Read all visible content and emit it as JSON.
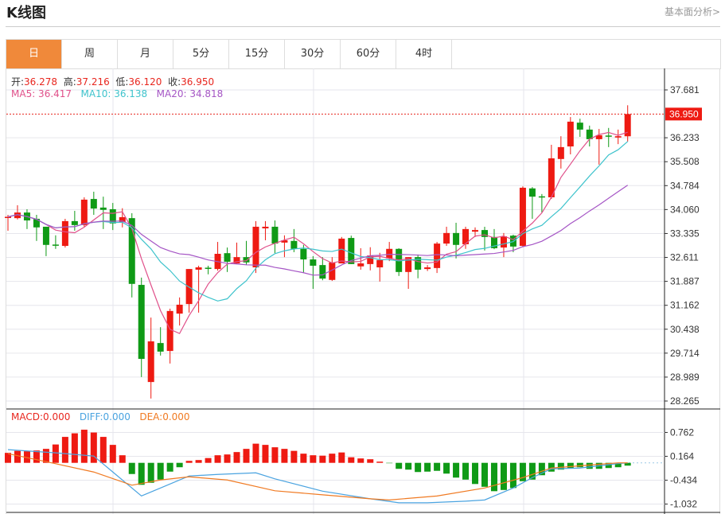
{
  "header": {
    "title": "K线图",
    "fundamental_link": "基本面分析>"
  },
  "tabs": [
    {
      "label": "日",
      "active": true
    },
    {
      "label": "周"
    },
    {
      "label": "月"
    },
    {
      "label": "5分"
    },
    {
      "label": "15分"
    },
    {
      "label": "30分"
    },
    {
      "label": "60分"
    },
    {
      "label": "4时"
    }
  ],
  "ohlc_legend": {
    "open_label": "开:",
    "open": "36.278",
    "high_label": "高:",
    "high": "37.216",
    "low_label": "低:",
    "low": "36.120",
    "close_label": "收:",
    "close": "36.950"
  },
  "ma_legend": {
    "ma5": "MA5: 36.417",
    "ma10": "MA10: 36.138",
    "ma20": "MA20: 34.818"
  },
  "macd_legend": {
    "macd": "MACD:0.000",
    "diff": "DIFF:0.000",
    "dea": "DEA:0.000"
  },
  "colors": {
    "up": "#ee1a12",
    "down": "#0f9a16",
    "ma5": "#e0508a",
    "ma10": "#3ec3cc",
    "ma20": "#a555c5",
    "diff": "#4aa3e0",
    "dea": "#f07a22",
    "accent": "#f0893a"
  },
  "chart_data": [
    {
      "type": "candlestick",
      "price_ticks": [
        "37.681",
        "36.233",
        "35.508",
        "34.784",
        "34.060",
        "33.335",
        "32.611",
        "31.887",
        "31.162",
        "30.438",
        "29.714",
        "28.989",
        "28.265"
      ],
      "ylim": [
        28.265,
        37.681
      ],
      "last_price": "36.950",
      "ohlc": [
        [
          33.82,
          33.9,
          33.42,
          33.84
        ],
        [
          33.8,
          34.19,
          33.76,
          33.97
        ],
        [
          33.97,
          34.07,
          33.47,
          33.73
        ],
        [
          33.78,
          33.9,
          33.11,
          33.52
        ],
        [
          33.54,
          33.54,
          32.65,
          32.99
        ],
        [
          33.0,
          33.28,
          32.87,
          32.98
        ],
        [
          32.96,
          33.78,
          32.91,
          33.71
        ],
        [
          33.71,
          34.02,
          33.42,
          33.59
        ],
        [
          33.59,
          34.43,
          33.54,
          34.36
        ],
        [
          34.38,
          34.6,
          33.9,
          34.09
        ],
        [
          34.12,
          34.45,
          33.47,
          34.05
        ],
        [
          34.07,
          34.26,
          33.44,
          33.64
        ],
        [
          33.68,
          34.1,
          33.52,
          33.83
        ],
        [
          33.8,
          33.95,
          31.4,
          31.81
        ],
        [
          31.78,
          32.0,
          28.99,
          29.54
        ],
        [
          28.84,
          30.79,
          28.34,
          30.07
        ],
        [
          30.02,
          30.5,
          29.64,
          29.76
        ],
        [
          29.78,
          31.06,
          29.4,
          30.99
        ],
        [
          30.91,
          31.4,
          30.55,
          31.18
        ],
        [
          31.2,
          32.26,
          30.94,
          32.26
        ],
        [
          32.24,
          32.36,
          30.94,
          32.31
        ],
        [
          32.3,
          32.36,
          32.1,
          32.28
        ],
        [
          32.26,
          33.08,
          32.21,
          32.72
        ],
        [
          32.74,
          32.91,
          32.17,
          32.48
        ],
        [
          32.43,
          33.06,
          32.41,
          32.62
        ],
        [
          32.62,
          33.11,
          32.38,
          32.46
        ],
        [
          32.31,
          33.71,
          32.14,
          33.54
        ],
        [
          33.49,
          33.71,
          33.13,
          33.54
        ],
        [
          33.54,
          33.73,
          32.74,
          33.03
        ],
        [
          33.06,
          33.28,
          32.62,
          33.13
        ],
        [
          33.11,
          33.47,
          32.77,
          32.87
        ],
        [
          32.87,
          32.99,
          32.15,
          32.55
        ],
        [
          32.55,
          32.65,
          31.66,
          32.36
        ],
        [
          32.38,
          32.62,
          31.92,
          31.97
        ],
        [
          31.93,
          32.62,
          31.9,
          32.46
        ],
        [
          32.43,
          33.23,
          32.43,
          33.18
        ],
        [
          33.2,
          33.27,
          32.41,
          32.41
        ],
        [
          32.34,
          32.89,
          32.24,
          32.43
        ],
        [
          32.41,
          32.92,
          32.22,
          32.67
        ],
        [
          32.31,
          32.75,
          31.88,
          32.53
        ],
        [
          32.58,
          33.08,
          32.5,
          32.87
        ],
        [
          32.87,
          32.89,
          32.05,
          32.17
        ],
        [
          32.17,
          32.62,
          31.66,
          32.62
        ],
        [
          32.62,
          32.7,
          31.98,
          32.24
        ],
        [
          32.26,
          32.38,
          32.2,
          32.31
        ],
        [
          32.29,
          33.08,
          32.14,
          33.03
        ],
        [
          33.03,
          33.54,
          32.96,
          33.35
        ],
        [
          33.35,
          33.66,
          32.58,
          32.99
        ],
        [
          33.01,
          33.54,
          32.87,
          33.47
        ],
        [
          33.39,
          33.52,
          33.23,
          33.44
        ],
        [
          33.44,
          33.54,
          32.82,
          33.23
        ],
        [
          33.23,
          33.47,
          32.86,
          32.89
        ],
        [
          32.91,
          33.35,
          32.62,
          33.25
        ],
        [
          33.27,
          33.3,
          32.77,
          32.94
        ],
        [
          32.96,
          34.76,
          32.92,
          34.72
        ],
        [
          34.7,
          34.74,
          33.78,
          34.45
        ],
        [
          34.46,
          34.53,
          33.97,
          34.44
        ],
        [
          34.43,
          36.02,
          34.38,
          35.61
        ],
        [
          35.59,
          36.28,
          35.3,
          35.95
        ],
        [
          35.97,
          36.86,
          35.73,
          36.72
        ],
        [
          36.69,
          36.81,
          36.26,
          36.48
        ],
        [
          36.48,
          36.6,
          35.97,
          36.19
        ],
        [
          36.19,
          36.5,
          35.42,
          36.31
        ],
        [
          36.3,
          36.53,
          35.95,
          36.27
        ],
        [
          36.24,
          36.48,
          36.04,
          36.28
        ],
        [
          36.278,
          37.216,
          36.12,
          36.95
        ]
      ]
    },
    {
      "type": "macd",
      "ticks": [
        "0.762",
        "0.164",
        "-0.434",
        "-1.032"
      ],
      "histogram": [
        0.25,
        0.3,
        0.29,
        0.31,
        0.35,
        0.46,
        0.65,
        0.74,
        0.83,
        0.76,
        0.65,
        0.45,
        0.19,
        -0.28,
        -0.55,
        -0.5,
        -0.42,
        -0.22,
        -0.11,
        0.05,
        0.07,
        0.12,
        0.19,
        0.21,
        0.27,
        0.35,
        0.48,
        0.45,
        0.39,
        0.35,
        0.3,
        0.23,
        0.19,
        0.18,
        0.23,
        0.26,
        0.14,
        0.11,
        0.09,
        0.03,
        -0.01,
        -0.15,
        -0.17,
        -0.23,
        -0.22,
        -0.2,
        -0.27,
        -0.37,
        -0.42,
        -0.53,
        -0.6,
        -0.71,
        -0.68,
        -0.63,
        -0.46,
        -0.42,
        -0.31,
        -0.22,
        -0.17,
        -0.13,
        -0.11,
        -0.15,
        -0.15,
        -0.13,
        -0.11,
        -0.07
      ],
      "diff": [
        [
          0,
          0.33
        ],
        [
          5,
          0.25
        ],
        [
          9,
          0.17
        ],
        [
          11,
          -0.23
        ],
        [
          14,
          -0.83
        ],
        [
          16,
          -0.63
        ],
        [
          19,
          -0.33
        ],
        [
          22,
          -0.29
        ],
        [
          26,
          -0.25
        ],
        [
          28,
          -0.4
        ],
        [
          33,
          -0.71
        ],
        [
          38,
          -0.9
        ],
        [
          41,
          -1.0
        ],
        [
          44,
          -1.0
        ],
        [
          48,
          -0.96
        ],
        [
          50,
          -0.93
        ],
        [
          53,
          -0.63
        ],
        [
          55,
          -0.37
        ],
        [
          57,
          -0.15
        ],
        [
          60,
          -0.13
        ],
        [
          64,
          -0.02
        ],
        [
          65,
          0
        ]
      ],
      "dea": [
        [
          0,
          0.23
        ],
        [
          4,
          0.03
        ],
        [
          9,
          -0.23
        ],
        [
          13,
          -0.56
        ],
        [
          16,
          -0.43
        ],
        [
          19,
          -0.35
        ],
        [
          23,
          -0.43
        ],
        [
          28,
          -0.7
        ],
        [
          33,
          -0.8
        ],
        [
          38,
          -0.9
        ],
        [
          40,
          -0.93
        ],
        [
          45,
          -0.83
        ],
        [
          50,
          -0.63
        ],
        [
          54,
          -0.37
        ],
        [
          57,
          -0.13
        ],
        [
          64,
          0
        ],
        [
          65,
          0
        ]
      ]
    }
  ]
}
